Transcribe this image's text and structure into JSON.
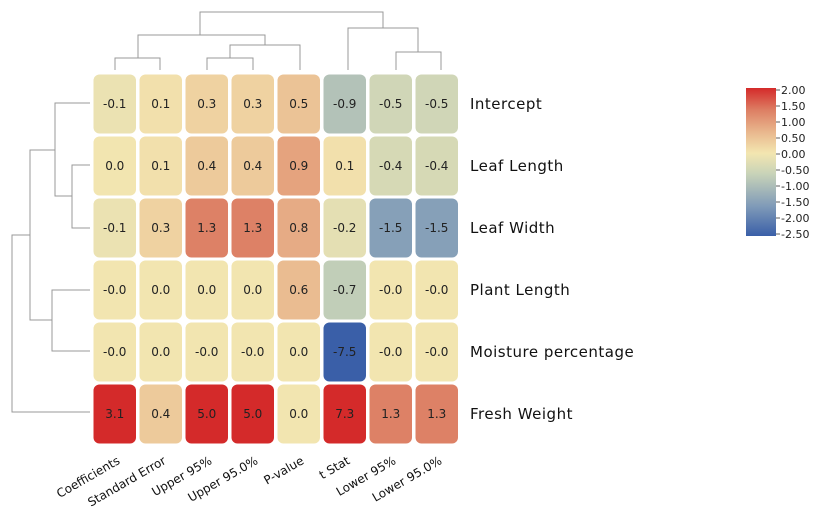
{
  "chart_data": {
    "type": "heatmap",
    "columns": [
      "Coefficients",
      "Standard Error",
      "Upper 95%",
      "Upper 95.0%",
      "P-value",
      "t Stat",
      "Lower 95%",
      "Lower 95.0%"
    ],
    "rows": [
      "Intercept",
      "Leaf Length",
      "Leaf Width",
      "Plant Length",
      "Moisture percentage",
      "Fresh Weight"
    ],
    "values": [
      [
        -0.1,
        0.1,
        0.3,
        0.3,
        0.5,
        -0.9,
        -0.5,
        -0.5
      ],
      [
        0.0,
        0.1,
        0.4,
        0.4,
        0.9,
        0.1,
        -0.4,
        -0.4
      ],
      [
        -0.1,
        0.3,
        1.3,
        1.3,
        0.8,
        -0.2,
        -1.5,
        -1.5
      ],
      [
        -0.0,
        0.0,
        0.0,
        0.0,
        0.6,
        -0.7,
        -0.0,
        -0.0
      ],
      [
        -0.0,
        0.0,
        -0.0,
        -0.0,
        0.0,
        -7.5,
        -0.0,
        -0.0
      ],
      [
        3.1,
        0.4,
        5.0,
        5.0,
        0.0,
        7.3,
        1.3,
        1.3
      ]
    ],
    "cell_labels": [
      [
        "-0.1",
        "0.1",
        "0.3",
        "0.3",
        "0.5",
        "-0.9",
        "-0.5",
        "-0.5"
      ],
      [
        "0.0",
        "0.1",
        "0.4",
        "0.4",
        "0.9",
        "0.1",
        "-0.4",
        "-0.4"
      ],
      [
        "-0.1",
        "0.3",
        "1.3",
        "1.3",
        "0.8",
        "-0.2",
        "-1.5",
        "-1.5"
      ],
      [
        "-0.0",
        "0.0",
        "0.0",
        "0.0",
        "0.6",
        "-0.7",
        "-0.0",
        "-0.0"
      ],
      [
        "-0.0",
        "0.0",
        "-0.0",
        "-0.0",
        "0.0",
        "-7.5",
        "-0.0",
        "-0.0"
      ],
      [
        "3.1",
        "0.4",
        "5.0",
        "5.0",
        "0.0",
        "7.3",
        "1.3",
        "1.3"
      ]
    ],
    "color_scale": {
      "min": -2.5,
      "max": 2.0,
      "ticks": [
        "2.00",
        "1.50",
        "1.00",
        "0.50",
        "0.00",
        "-0.50",
        "-1.00",
        "-1.50",
        "-2.00",
        "-2.50"
      ],
      "stops": [
        "#3a5fa8",
        "#7f9ab8",
        "#c8d3b8",
        "#f3e6b0",
        "#e9b88e",
        "#dd7f64",
        "#d42a2a"
      ]
    },
    "column_order_note": "",
    "dendrograms": {
      "rows": true,
      "columns": true
    },
    "title": "",
    "xlabel": "",
    "ylabel": ""
  }
}
